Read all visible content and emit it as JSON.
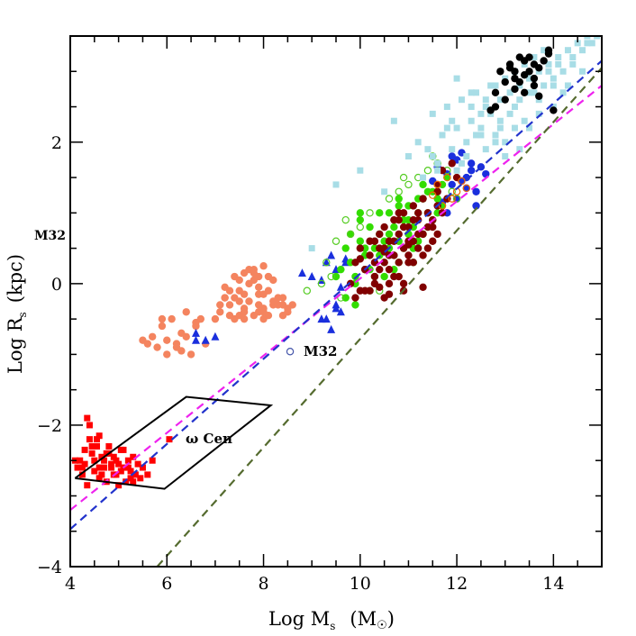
{
  "chart_data": {
    "type": "scatter",
    "title": "",
    "xlabel": "Log M",
    "xlabel_sub": "s",
    "xlabel_unit": "(M",
    "xlabel_unit_sym": "☉",
    "xlabel_unit_close": ")",
    "ylabel": "Log R",
    "ylabel_sub": "s",
    "ylabel_unit": "(kpc)",
    "xlim": [
      4,
      15
    ],
    "ylim": [
      -4,
      3.5
    ],
    "x_ticks": [
      4,
      6,
      8,
      10,
      12,
      14
    ],
    "x_tick_labels": [
      "4",
      "6",
      "8",
      "10",
      "12",
      "14"
    ],
    "y_ticks": [
      -4,
      -2,
      0,
      2
    ],
    "y_tick_labels": [
      "−4",
      "−2",
      "0",
      "2"
    ],
    "annotations": [
      {
        "text": "M32",
        "x": 8.85,
        "y": -0.97,
        "kind": "point-label"
      },
      {
        "text": "ω Cen",
        "x": 6.4,
        "y": -2.22,
        "kind": "point-label"
      },
      {
        "text": "M32",
        "x": -0.15,
        "y": 0.7,
        "kind": "margin-label"
      }
    ],
    "lines": [
      {
        "name": "magenta-dashed-fit",
        "color": "#ee22ee",
        "x": [
          4.0,
          15.0
        ],
        "y": [
          -3.2,
          2.8
        ]
      },
      {
        "name": "blue-dashed-fit",
        "color": "#2233cc",
        "x": [
          4.0,
          15.0
        ],
        "y": [
          -3.47,
          3.15
        ]
      },
      {
        "name": "olive-dashed-fit",
        "color": "#556b2f",
        "x": [
          5.8,
          15.0
        ],
        "y": [
          -4.0,
          3.05
        ]
      }
    ],
    "region": {
      "name": "omega-cen-box",
      "x": [
        4.1,
        6.4,
        8.15,
        5.95,
        4.1
      ],
      "y": [
        -2.75,
        -1.6,
        -1.72,
        -2.9,
        -2.75
      ]
    },
    "series": [
      {
        "name": "red-squares",
        "color": "#ff0000",
        "marker": "square",
        "x": [
          4.15,
          4.2,
          4.25,
          4.3,
          4.35,
          4.4,
          4.45,
          4.5,
          4.55,
          4.6,
          4.65,
          4.7,
          4.75,
          4.8,
          4.85,
          4.9,
          4.95,
          5.0,
          5.05,
          5.1,
          5.15,
          5.2,
          5.25,
          5.3,
          5.35,
          5.4,
          5.45,
          5.5,
          5.6,
          5.7,
          4.4,
          4.6,
          4.8,
          5.0,
          5.2,
          4.5,
          4.7,
          4.9,
          5.1,
          5.3,
          4.45,
          4.65,
          4.85,
          5.05,
          5.25,
          4.35,
          4.55,
          4.75,
          4.95,
          4.25,
          4.1,
          4.3,
          4.6,
          6.05
        ],
        "y": [
          -2.6,
          -2.5,
          -2.7,
          -2.55,
          -1.9,
          -2.0,
          -2.4,
          -2.65,
          -2.3,
          -2.6,
          -2.7,
          -2.5,
          -2.8,
          -2.4,
          -2.6,
          -2.45,
          -2.7,
          -2.55,
          -2.35,
          -2.6,
          -2.8,
          -2.5,
          -2.65,
          -2.45,
          -2.7,
          -2.55,
          -2.75,
          -2.6,
          -2.7,
          -2.5,
          -2.2,
          -2.75,
          -2.3,
          -2.85,
          -2.6,
          -2.5,
          -2.6,
          -2.7,
          -2.35,
          -2.8,
          -2.3,
          -2.45,
          -2.55,
          -2.65,
          -2.75,
          -2.85,
          -2.2,
          -2.4,
          -2.5,
          -2.6,
          -2.5,
          -2.35,
          -2.15,
          -2.2
        ]
      },
      {
        "name": "salmon-circles",
        "color": "#f4845f",
        "marker": "circle",
        "x": [
          5.5,
          5.6,
          5.7,
          5.8,
          5.9,
          6.0,
          6.1,
          6.2,
          6.3,
          6.4,
          6.5,
          6.6,
          6.7,
          6.8,
          6.0,
          6.2,
          6.4,
          6.6,
          5.9,
          6.3,
          7.0,
          7.1,
          7.2,
          7.3,
          7.4,
          7.5,
          7.6,
          7.7,
          7.8,
          7.9,
          8.0,
          8.1,
          8.2,
          8.3,
          8.4,
          8.5,
          8.6,
          7.2,
          7.4,
          7.6,
          7.8,
          8.0,
          8.2,
          8.4,
          7.3,
          7.5,
          7.7,
          7.9,
          8.1,
          8.3,
          7.1,
          7.6,
          8.0,
          8.5,
          7.4,
          7.9,
          7.5,
          7.7,
          7.9,
          8.1,
          7.8,
          8.0,
          7.6,
          7.3,
          8.2,
          7.8,
          7.2,
          7.6,
          8.0,
          8.4,
          7.5,
          7.9
        ],
        "y": [
          -0.8,
          -0.85,
          -0.75,
          -0.9,
          -0.6,
          -0.8,
          -0.5,
          -0.85,
          -0.7,
          -0.4,
          -1.0,
          -0.55,
          -0.5,
          -0.85,
          -1.0,
          -0.9,
          -0.75,
          -0.6,
          -0.5,
          -0.95,
          -0.5,
          -0.4,
          -0.2,
          -0.3,
          -0.5,
          -0.1,
          -0.4,
          -0.25,
          0.05,
          -0.3,
          -0.15,
          -0.45,
          -0.3,
          -0.2,
          -0.45,
          -0.35,
          -0.3,
          -0.05,
          0.1,
          -0.15,
          0.2,
          -0.35,
          0.05,
          -0.2,
          -0.45,
          -0.25,
          0.0,
          -0.4,
          -0.1,
          -0.3,
          -0.3,
          0.15,
          0.25,
          -0.4,
          -0.2,
          0.1,
          0.05,
          0.2,
          -0.05,
          0.1,
          -0.45,
          -0.5,
          -0.35,
          -0.1,
          -0.25,
          0.15,
          -0.2,
          -0.5,
          -0.4,
          -0.3,
          -0.45,
          -0.15
        ]
      },
      {
        "name": "blue-triangles",
        "color": "#1a2fdd",
        "marker": "triangle",
        "x": [
          6.6,
          6.8,
          6.6,
          7.0,
          8.8,
          9.0,
          9.2,
          9.3,
          9.4,
          9.5,
          9.6,
          9.7,
          9.3,
          9.5,
          9.2,
          9.6,
          9.4,
          9.5,
          9.7
        ],
        "y": [
          -0.7,
          -0.8,
          -0.8,
          -0.75,
          0.15,
          0.1,
          0.05,
          0.3,
          0.4,
          0.2,
          -0.05,
          0.3,
          -0.5,
          -0.3,
          -0.5,
          -0.4,
          -0.65,
          -0.35,
          0.35
        ]
      },
      {
        "name": "blue-circles",
        "color": "#1a2fdd",
        "marker": "circle",
        "x": [
          11.5,
          11.6,
          11.7,
          11.8,
          11.9,
          12.0,
          12.1,
          12.2,
          12.3,
          12.4,
          12.5,
          11.8,
          12.0,
          12.2,
          12.4,
          11.6,
          12.6,
          11.9,
          12.1,
          12.3
        ],
        "y": [
          1.45,
          1.65,
          1.15,
          1.55,
          1.4,
          1.75,
          1.45,
          1.5,
          1.6,
          1.3,
          1.65,
          1.0,
          1.2,
          1.35,
          1.1,
          1.3,
          1.55,
          1.8,
          1.85,
          1.7
        ]
      },
      {
        "name": "green-circles",
        "color": "#33dd00",
        "marker": "circle",
        "x": [
          9.6,
          9.7,
          9.8,
          9.9,
          10.0,
          10.1,
          10.2,
          10.3,
          10.4,
          10.5,
          10.6,
          10.7,
          10.8,
          10.9,
          11.0,
          11.1,
          11.2,
          11.3,
          11.4,
          11.5,
          11.6,
          11.7,
          9.7,
          9.9,
          10.1,
          10.3,
          10.5,
          10.7,
          10.9,
          11.1,
          11.3,
          11.5,
          9.8,
          10.0,
          10.2,
          10.4,
          10.6,
          10.8,
          11.0,
          11.2,
          11.4,
          11.6,
          9.9,
          10.2,
          10.5,
          10.8,
          11.1,
          11.4,
          10.0,
          10.4,
          10.8,
          11.2,
          9.5,
          10.6,
          11.0,
          11.3,
          11.7,
          11.8,
          10.1,
          10.7
        ],
        "y": [
          0.2,
          0.5,
          0.3,
          0.1,
          0.6,
          0.4,
          0.8,
          0.5,
          0.7,
          0.6,
          1.0,
          0.8,
          0.6,
          0.9,
          1.1,
          0.8,
          1.0,
          1.2,
          1.0,
          1.3,
          1.2,
          1.4,
          -0.2,
          0.0,
          0.2,
          0.1,
          0.3,
          0.4,
          0.5,
          0.5,
          0.7,
          0.9,
          0.7,
          0.9,
          0.2,
          0.4,
          0.7,
          1.1,
          0.7,
          1.2,
          1.3,
          1.0,
          -0.3,
          -0.1,
          0.1,
          0.3,
          0.3,
          0.8,
          1.0,
          1.0,
          1.2,
          0.6,
          0.1,
          0.5,
          0.9,
          1.4,
          1.1,
          1.5,
          0.5,
          0.2
        ]
      },
      {
        "name": "green-open-circles",
        "color": "#55cc22",
        "marker": "open-circle",
        "x": [
          9.3,
          9.5,
          9.6,
          9.8,
          10.0,
          10.2,
          10.4,
          10.6,
          10.8,
          11.0,
          11.2,
          11.4,
          11.6,
          11.8,
          11.9,
          12.0,
          9.4,
          9.7,
          10.9,
          11.5,
          8.9,
          9.2
        ],
        "y": [
          0.3,
          0.6,
          -0.2,
          0.7,
          0.8,
          1.0,
          -0.1,
          1.2,
          1.3,
          1.4,
          1.5,
          1.6,
          1.7,
          1.6,
          1.3,
          1.2,
          0.1,
          0.9,
          1.5,
          1.8,
          -0.1,
          0.0
        ]
      },
      {
        "name": "darkred-circles",
        "color": "#800000",
        "marker": "circle",
        "x": [
          9.8,
          9.9,
          10.0,
          10.1,
          10.2,
          10.3,
          10.4,
          10.5,
          10.6,
          10.7,
          10.8,
          10.9,
          11.0,
          11.1,
          11.2,
          11.3,
          11.4,
          11.5,
          11.6,
          11.7,
          9.9,
          10.1,
          10.3,
          10.5,
          10.7,
          10.9,
          11.1,
          11.3,
          11.5,
          10.0,
          10.2,
          10.4,
          10.6,
          10.8,
          11.0,
          11.2,
          11.4,
          11.6,
          10.1,
          10.3,
          10.5,
          10.7,
          10.9,
          11.1,
          11.3,
          10.2,
          10.4,
          10.6,
          10.8,
          11.0,
          11.2,
          10.3,
          10.5,
          10.7,
          10.9,
          11.1,
          10.4,
          10.6,
          10.8,
          11.0,
          11.4,
          11.6,
          11.8,
          10.0,
          10.5,
          11.0,
          11.5,
          10.8,
          11.2,
          11.6,
          12.0,
          11.7,
          11.9,
          11.3,
          10.9,
          10.6
        ],
        "y": [
          0.0,
          0.3,
          -0.1,
          0.2,
          0.4,
          0.1,
          0.5,
          0.3,
          0.6,
          0.4,
          0.7,
          0.5,
          0.8,
          0.6,
          0.9,
          0.7,
          1.0,
          0.8,
          1.1,
          1.0,
          -0.2,
          -0.1,
          0.0,
          -0.2,
          0.1,
          0.0,
          0.3,
          0.4,
          0.6,
          0.5,
          0.6,
          0.7,
          0.2,
          0.9,
          0.6,
          0.5,
          0.8,
          1.3,
          0.2,
          0.3,
          0.8,
          0.9,
          1.0,
          1.1,
          1.2,
          -0.1,
          0.2,
          0.4,
          0.3,
          0.4,
          0.7,
          0.6,
          0.5,
          0.6,
          0.8,
          0.9,
          -0.05,
          0.0,
          0.1,
          0.3,
          0.5,
          0.7,
          1.2,
          0.35,
          0.45,
          0.55,
          0.9,
          1.0,
          1.0,
          1.4,
          1.5,
          1.6,
          1.7,
          -0.05,
          -0.1,
          -0.15
        ]
      },
      {
        "name": "orange-open-circles",
        "color": "#ee6600",
        "marker": "open-circle",
        "x": [
          11.6,
          11.8,
          12.0,
          12.1,
          11.9,
          11.7,
          12.2,
          11.5
        ],
        "y": [
          1.4,
          1.5,
          1.3,
          1.45,
          1.2,
          1.1,
          1.35,
          1.25
        ]
      },
      {
        "name": "lightblue-squares",
        "color": "#a8dde6",
        "marker": "square",
        "x": [
          9.0,
          9.5,
          10.0,
          10.5,
          10.7,
          11.0,
          11.2,
          11.4,
          11.5,
          11.6,
          11.7,
          11.8,
          11.9,
          12.0,
          12.1,
          12.2,
          12.3,
          12.4,
          12.5,
          12.6,
          12.7,
          12.8,
          12.9,
          13.0,
          13.1,
          13.2,
          13.3,
          13.4,
          13.5,
          13.6,
          13.7,
          13.8,
          13.9,
          14.0,
          14.1,
          14.2,
          14.3,
          14.4,
          14.5,
          14.6,
          14.7,
          14.8,
          14.9,
          11.3,
          11.6,
          11.9,
          12.2,
          12.5,
          12.8,
          13.1,
          13.4,
          13.7,
          14.0,
          14.3,
          14.6,
          12.0,
          12.3,
          12.6,
          12.9,
          13.2,
          13.5,
          13.8,
          14.1,
          12.4,
          12.7,
          13.0,
          13.3,
          13.6,
          12.1,
          12.5,
          12.9,
          13.3,
          13.7,
          14.2,
          11.8,
          12.3,
          12.8,
          13.2,
          13.9,
          14.4,
          11.5,
          12.0,
          12.6,
          13.0,
          13.5,
          14.0,
          14.7
        ],
        "y": [
          0.5,
          1.4,
          1.6,
          1.3,
          2.3,
          1.8,
          2.0,
          1.9,
          2.4,
          1.6,
          2.1,
          2.5,
          1.9,
          2.2,
          2.6,
          2.0,
          2.3,
          2.7,
          2.1,
          2.5,
          2.4,
          2.8,
          2.6,
          2.9,
          2.7,
          3.0,
          2.8,
          3.1,
          2.9,
          3.2,
          3.0,
          3.3,
          3.1,
          2.8,
          3.2,
          3.0,
          3.3,
          3.2,
          3.4,
          3.3,
          3.5,
          3.4,
          3.5,
          1.5,
          1.7,
          2.3,
          1.8,
          2.2,
          2.0,
          2.4,
          2.3,
          2.6,
          2.5,
          2.8,
          3.0,
          2.9,
          2.5,
          1.9,
          2.2,
          2.5,
          2.7,
          2.8,
          3.1,
          2.1,
          2.8,
          2.0,
          2.6,
          2.7,
          1.7,
          2.4,
          2.3,
          1.9,
          2.4,
          2.7,
          2.2,
          2.7,
          2.1,
          2.2,
          3.0,
          3.1,
          1.8,
          1.6,
          2.6,
          1.8,
          2.2,
          2.9,
          3.4
        ]
      },
      {
        "name": "black-circles",
        "color": "#000000",
        "marker": "circle",
        "x": [
          12.7,
          12.8,
          12.9,
          13.0,
          13.1,
          13.2,
          13.3,
          13.4,
          13.5,
          13.6,
          13.7,
          13.8,
          13.9,
          13.0,
          13.2,
          13.4,
          13.6,
          13.3,
          13.5,
          13.1,
          12.8,
          13.7,
          13.4,
          13.2,
          14.0,
          13.9,
          13.6
        ],
        "y": [
          2.45,
          2.7,
          3.0,
          2.85,
          3.1,
          2.9,
          3.2,
          2.95,
          3.0,
          2.8,
          3.05,
          3.15,
          3.3,
          2.6,
          2.75,
          3.15,
          2.9,
          2.85,
          3.2,
          3.05,
          2.5,
          2.65,
          2.7,
          3.0,
          2.45,
          3.25,
          3.1
        ]
      },
      {
        "name": "m32-point",
        "color": "#4455aa",
        "marker": "open-circle",
        "x": [
          8.55
        ],
        "y": [
          -0.96
        ]
      }
    ]
  }
}
